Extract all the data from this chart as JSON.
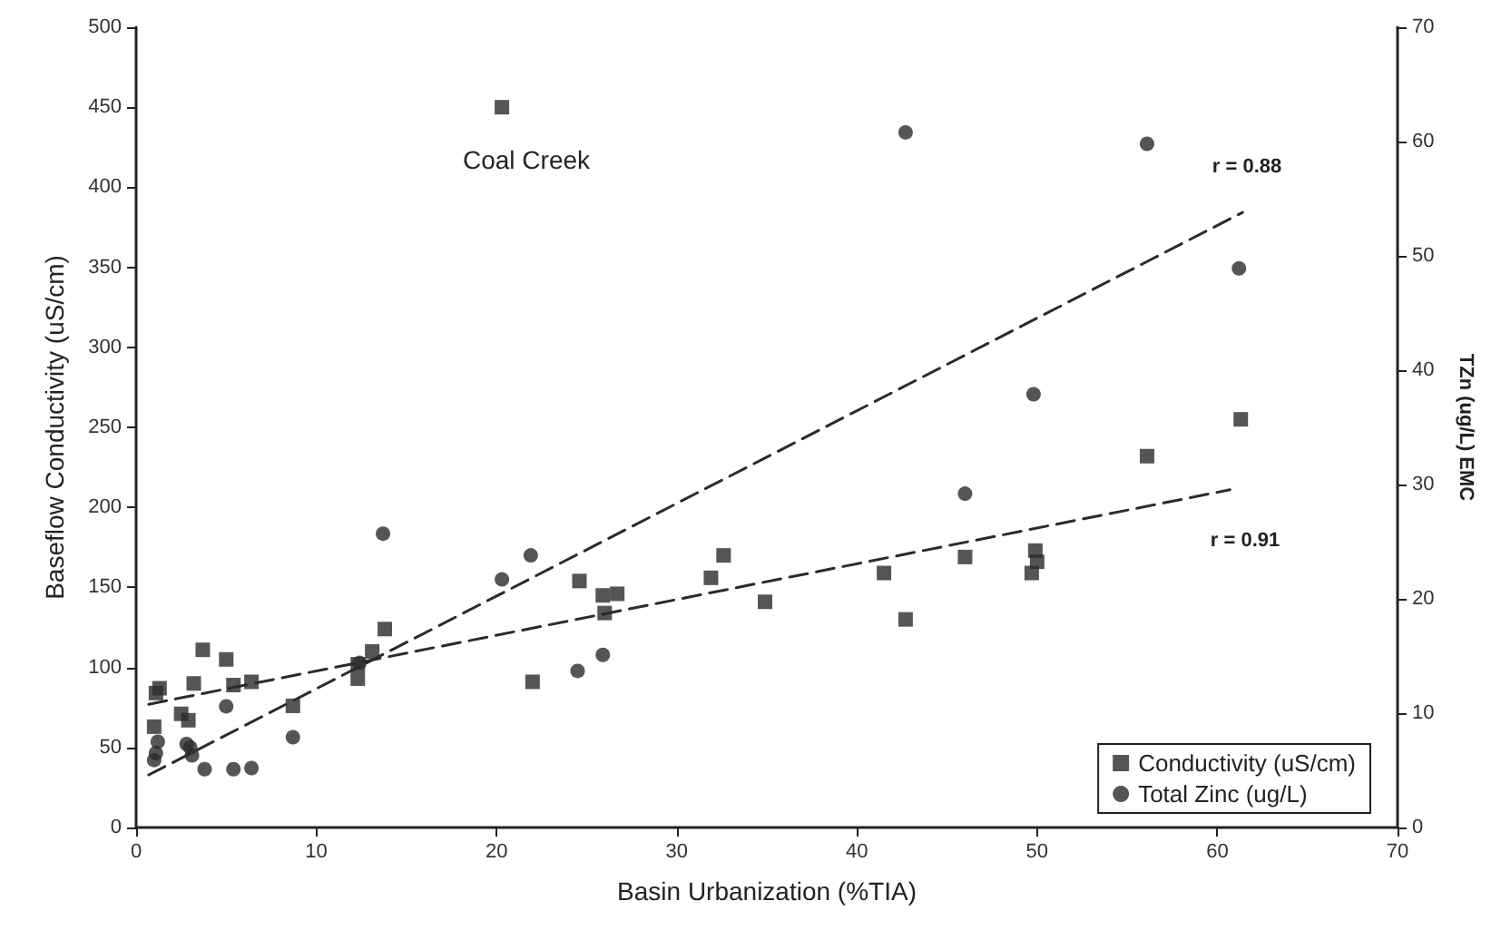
{
  "chart_data": {
    "type": "scatter",
    "xlabel": "Basin Urbanization (%TIA)",
    "ylabel": "Baseflow Conductivity (uS/cm)",
    "y2label": "TZn (ug/L) EMC",
    "xlim": [
      0,
      70
    ],
    "xticks": [
      0,
      10,
      20,
      30,
      40,
      50,
      60,
      70
    ],
    "ylim": [
      0,
      500
    ],
    "yticks": [
      0,
      50,
      100,
      150,
      200,
      250,
      300,
      350,
      400,
      450,
      500
    ],
    "y2lim": [
      0,
      70
    ],
    "y2ticks": [
      0,
      10,
      20,
      30,
      40,
      50,
      60,
      70
    ],
    "grid": false,
    "legend": "bottom right",
    "series": [
      {
        "name": "Conductivity (uS/cm)",
        "marker": "square",
        "color": "#2b2b2b",
        "x": [
          1.3,
          1.1,
          1.0,
          3.7,
          5.0,
          3.2,
          2.5,
          2.9,
          5.4,
          6.4,
          8.7,
          12.3,
          12.3,
          13.1,
          13.8,
          20.3,
          22.0,
          24.6,
          25.9,
          26.7,
          26.0,
          31.9,
          32.6,
          34.9,
          41.5,
          42.7,
          46.0,
          49.9,
          50.0,
          49.7,
          56.1,
          61.3
        ],
        "values": [
          87,
          84,
          63,
          111,
          105,
          90,
          71,
          67,
          89,
          91,
          76,
          102,
          93,
          110,
          124,
          450,
          91,
          154,
          145,
          146,
          134,
          156,
          170,
          141,
          159,
          130,
          169,
          173,
          166,
          159,
          232,
          255
        ]
      },
      {
        "name": "Total Zinc (ug/L)",
        "axis": "y2",
        "marker": "circle",
        "color": "#2b2b2b",
        "x": [
          1.0,
          1.2,
          1.1,
          2.8,
          3.1,
          3.0,
          3.8,
          5.0,
          5.4,
          6.4,
          8.7,
          12.4,
          13.7,
          20.3,
          21.9,
          24.5,
          25.9,
          42.7,
          56.1,
          61.2,
          49.8,
          46.0
        ],
        "values": [
          5.9,
          7.5,
          6.5,
          7.3,
          6.3,
          7.0,
          5.1,
          10.6,
          5.1,
          5.2,
          7.9,
          14.4,
          25.7,
          21.7,
          23.8,
          13.7,
          15.1,
          60.8,
          59.8,
          48.9,
          37.9,
          29.2
        ]
      },
      {
        "type": "line",
        "line_style": "dashed",
        "marker": "none",
        "color": "#2b2b2b",
        "x": [
          0.7,
          60.7
        ],
        "values": [
          77,
          211
        ]
      },
      {
        "type": "line",
        "axis": "y2",
        "line_style": "dashed",
        "marker": "none",
        "color": "#2b2b2b",
        "x": [
          0.7,
          61.4
        ],
        "values": [
          4.6,
          53.8
        ]
      }
    ],
    "annotations": [
      "Coal Creek",
      "r = 0.88",
      "r = 0.91"
    ]
  }
}
